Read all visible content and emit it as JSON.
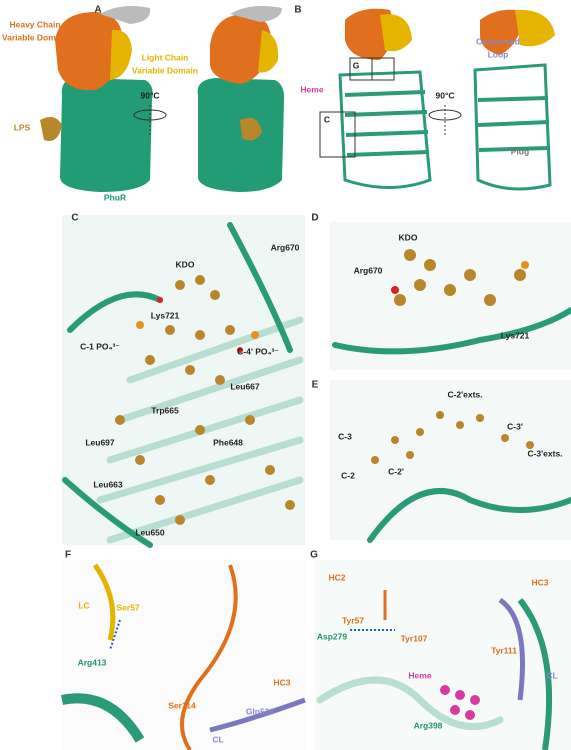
{
  "panels": [
    {
      "label": "A",
      "annotations": [
        "Heavy Chain",
        "Variable Domain",
        "Light Chain",
        "Variable Domain",
        "90°C",
        "LPS",
        "PhuR"
      ]
    },
    {
      "label": "B",
      "annotations": [
        "G",
        "C",
        "Heme",
        "Conserved",
        "Loop",
        "90°C",
        "Plug"
      ]
    },
    {
      "label": "C",
      "annotations": [
        "KDO",
        "Arg670",
        "Lys721",
        "C-1 PO₄³⁻",
        "C-4' PO₄³⁻",
        "Leu667",
        "Trp665",
        "Leu697",
        "Phe648",
        "Leu663",
        "Leu650"
      ]
    },
    {
      "label": "D",
      "annotations": [
        "KDO",
        "Arg670",
        "Lys721"
      ]
    },
    {
      "label": "E",
      "annotations": [
        "C-2'exts.",
        "C-3",
        "C-3'",
        "C-3'exts.",
        "C-2",
        "C-2'"
      ]
    },
    {
      "label": "F",
      "annotations": [
        "LC",
        "Ser57",
        "Arg413",
        "Ser114",
        "Gln526",
        "HC3",
        "CL"
      ]
    },
    {
      "label": "G",
      "annotations": [
        "HC2",
        "Tyr57",
        "Asp279",
        "Tyr107",
        "HC3",
        "Tyr111",
        "CL",
        "Heme",
        "Arg398"
      ]
    }
  ]
}
